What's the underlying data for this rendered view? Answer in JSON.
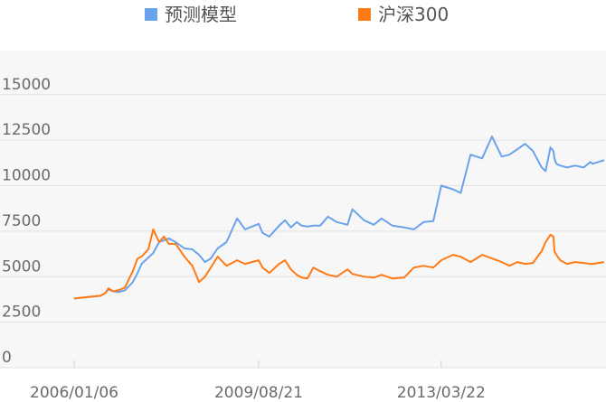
{
  "legend": {
    "items": [
      {
        "label": "预测模型",
        "color": "#6aa3ec"
      },
      {
        "label": "沪深300",
        "color": "#ff7a14"
      }
    ]
  },
  "chart_data": {
    "type": "line",
    "xlabel": "",
    "ylabel": "",
    "ylim": [
      0,
      16000
    ],
    "yticks": [
      0,
      2500,
      5000,
      7500,
      10000,
      12500,
      15000
    ],
    "ytick_labels": [
      "0",
      "2500",
      "5000",
      "7500",
      "10000",
      "12500",
      "15000"
    ],
    "xtick_labels": [
      "2006/01/06",
      "2009/08/21",
      "2013/03/22"
    ],
    "grid": true,
    "legend_position": "top",
    "series": [
      {
        "name": "预测模型",
        "color": "#6aa3ec",
        "x": [
          "2006/01/06",
          "2006/07/14",
          "2006/08/18",
          "2006/09/08",
          "2006/10/13",
          "2006/11/17",
          "2007/01/05",
          "2007/03/02",
          "2007/04/06",
          "2007/05/04",
          "2007/06/22",
          "2007/07/27",
          "2007/09/07",
          "2007/10/12",
          "2007/11/16",
          "2008/01/04",
          "2008/03/07",
          "2008/05/02",
          "2008/06/20",
          "2008/08/01",
          "2008/09/12",
          "2008/10/31",
          "2009/01/02",
          "2009/03/20",
          "2009/05/15",
          "2009/08/21",
          "2009/09/18",
          "2009/11/06",
          "2010/01/15",
          "2010/02/26",
          "2010/04/09",
          "2010/05/21",
          "2010/06/25",
          "2010/08/06",
          "2010/09/17",
          "2010/11/05",
          "2010/12/31",
          "2011/03/04",
          "2011/05/20",
          "2011/06/24",
          "2011/09/16",
          "2011/11/25",
          "2012/01/20",
          "2012/04/06",
          "2012/06/29",
          "2012/09/07",
          "2012/11/16",
          "2013/01/25",
          "2013/03/22",
          "2013/06/14",
          "2013/08/09",
          "2013/10/18",
          "2014/01/10",
          "2014/03/21",
          "2014/05/30",
          "2014/07/25",
          "2014/09/19",
          "2014/11/14",
          "2015/01/09",
          "2015/03/13",
          "2015/04/10",
          "2015/05/15",
          "2015/06/05",
          "2015/06/12",
          "2015/06/26",
          "2015/07/24",
          "2015/09/11",
          "2015/11/06",
          "2016/01/08",
          "2016/02/26",
          "2016/03/11",
          "2016/06/03"
        ],
        "y": [
          3800,
          3950,
          4100,
          4300,
          4200,
          4150,
          4250,
          4700,
          5200,
          5700,
          6050,
          6300,
          6900,
          7000,
          7100,
          6900,
          6550,
          6500,
          6200,
          5800,
          6000,
          6550,
          6900,
          8200,
          7600,
          7900,
          7400,
          7200,
          7800,
          8100,
          7700,
          8000,
          7800,
          7750,
          7800,
          7800,
          8300,
          8000,
          7850,
          8700,
          8100,
          7850,
          8200,
          7800,
          7700,
          7600,
          8000,
          8050,
          10000,
          9800,
          9600,
          11700,
          11500,
          12700,
          11600,
          11700,
          12000,
          12300,
          11900,
          11000,
          10800,
          12100,
          11900,
          11500,
          11200,
          11100,
          11000,
          11100,
          11000,
          11300,
          11200,
          11400
        ]
      },
      {
        "name": "沪深300",
        "color": "#ff7a14",
        "x": [
          "2006/01/06",
          "2006/07/14",
          "2006/08/18",
          "2006/09/08",
          "2006/10/13",
          "2006/11/17",
          "2007/01/05",
          "2007/03/02",
          "2007/04/06",
          "2007/05/04",
          "2007/06/22",
          "2007/07/27",
          "2007/09/07",
          "2007/10/12",
          "2007/11/16",
          "2008/01/04",
          "2008/03/07",
          "2008/05/02",
          "2008/06/20",
          "2008/08/01",
          "2008/09/12",
          "2008/10/31",
          "2009/01/02",
          "2009/03/20",
          "2009/05/15",
          "2009/08/21",
          "2009/09/18",
          "2009/11/06",
          "2010/01/15",
          "2010/02/26",
          "2010/04/09",
          "2010/05/21",
          "2010/06/25",
          "2010/08/06",
          "2010/09/17",
          "2010/11/05",
          "2010/12/31",
          "2011/03/04",
          "2011/05/20",
          "2011/06/24",
          "2011/09/16",
          "2011/11/25",
          "2012/01/20",
          "2012/04/06",
          "2012/06/29",
          "2012/09/07",
          "2012/11/16",
          "2013/01/25",
          "2013/03/22",
          "2013/06/14",
          "2013/08/09",
          "2013/10/18",
          "2014/01/10",
          "2014/03/21",
          "2014/05/30",
          "2014/07/25",
          "2014/09/19",
          "2014/11/14",
          "2015/01/09",
          "2015/03/13",
          "2015/04/10",
          "2015/05/15",
          "2015/06/05",
          "2015/06/12",
          "2015/06/26",
          "2015/07/24",
          "2015/09/11",
          "2015/11/06",
          "2016/01/08",
          "2016/02/26",
          "2016/03/11",
          "2016/06/03"
        ],
        "y": [
          3800,
          3950,
          4100,
          4350,
          4200,
          4250,
          4400,
          5300,
          6000,
          6100,
          6500,
          7600,
          6900,
          7200,
          6800,
          6800,
          6100,
          5600,
          4700,
          5000,
          5500,
          6100,
          5600,
          5900,
          5700,
          5900,
          5500,
          5200,
          5700,
          5900,
          5400,
          5100,
          4950,
          4900,
          5500,
          5300,
          5100,
          5000,
          5400,
          5150,
          5000,
          4950,
          5100,
          4900,
          4950,
          5500,
          5600,
          5500,
          5900,
          6200,
          6100,
          5800,
          6200,
          6000,
          5800,
          5600,
          5800,
          5700,
          5750,
          6400,
          6900,
          7300,
          7200,
          6400,
          6200,
          5900,
          5700,
          5800,
          5750,
          5700,
          5700,
          5800
        ]
      }
    ]
  }
}
